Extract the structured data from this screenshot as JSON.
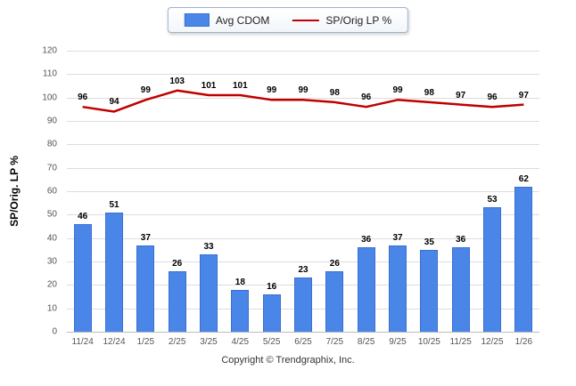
{
  "footer": "Copyright © Trendgraphix, Inc.",
  "chart_data": {
    "type": "bar",
    "title": "",
    "categories": [
      "11/24",
      "12/24",
      "1/25",
      "2/25",
      "3/25",
      "4/25",
      "5/25",
      "6/25",
      "7/25",
      "8/25",
      "9/25",
      "10/25",
      "11/25",
      "12/25",
      "1/26"
    ],
    "series": [
      {
        "name": "Avg CDOM",
        "type": "bar",
        "color": "#4a86e8",
        "values": [
          46,
          51,
          37,
          26,
          33,
          18,
          16,
          23,
          26,
          36,
          37,
          35,
          36,
          53,
          62
        ]
      },
      {
        "name": "SP/Orig LP %",
        "type": "line",
        "color": "#c00000",
        "values": [
          96,
          94,
          99,
          103,
          101,
          101,
          99,
          99,
          98,
          96,
          99,
          98,
          97,
          96,
          97
        ]
      }
    ],
    "xlabel": "",
    "ylabel": "SP/Orig. LP %",
    "ylim": [
      0,
      120
    ],
    "ytick_step": 10,
    "grid": true,
    "legend_position": "top"
  }
}
